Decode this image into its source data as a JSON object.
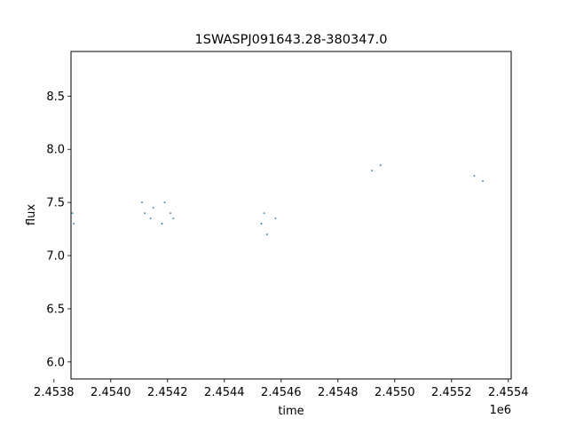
{
  "chart_data": {
    "type": "scatter",
    "title": "1SWASPJ091643.28-380347.0",
    "xlabel": "time",
    "ylabel": "flux",
    "x_offset_label": "1e6",
    "xlim": [
      2.45386,
      2.45541
    ],
    "ylim": [
      5.84,
      8.92
    ],
    "x_ticks": [
      2.4538,
      2.454,
      2.4542,
      2.4544,
      2.4546,
      2.4548,
      2.455,
      2.4552,
      2.4554
    ],
    "x_tick_labels": [
      "2.4538",
      "2.4540",
      "2.4542",
      "2.4544",
      "2.4546",
      "2.4548",
      "2.4550",
      "2.4552",
      "2.4554"
    ],
    "y_ticks": [
      6.0,
      6.5,
      7.0,
      7.5,
      8.0,
      8.5
    ],
    "y_tick_labels": [
      "6.0",
      "6.5",
      "7.0",
      "7.5",
      "8.0",
      "8.5"
    ],
    "grid": false,
    "legend": "none",
    "marker_color": "#1f77b4",
    "series": [
      {
        "x": [
          2.453865,
          2.45387,
          2.45411,
          2.45412,
          2.45414,
          2.45415,
          2.45418,
          2.45419,
          2.45421,
          2.45422,
          2.45453,
          2.45454,
          2.45455,
          2.45458,
          2.45492,
          2.45495,
          2.45528,
          2.45531
        ],
        "y": [
          7.4,
          7.3,
          7.5,
          7.4,
          7.35,
          7.45,
          7.3,
          7.5,
          7.4,
          7.35,
          7.3,
          7.4,
          7.2,
          7.35,
          7.8,
          7.85,
          7.75,
          7.7
        ]
      }
    ]
  }
}
